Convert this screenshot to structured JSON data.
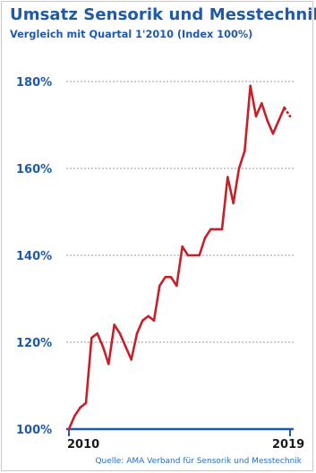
{
  "chart_data": {
    "type": "line",
    "title": "Umsatz Sensorik und Messtechnik",
    "subtitle": "Vergleich mit Quartal 1'2010 (Index 100%)",
    "xlabel": "",
    "ylabel": "",
    "x_start_label": "2010",
    "x_end_label": "2019",
    "yticks": [
      100,
      120,
      140,
      160,
      180
    ],
    "ytick_labels": [
      "100%",
      "120%",
      "140%",
      "160%",
      "180%"
    ],
    "ylim": [
      100,
      180
    ],
    "grid": "horizontal dotted",
    "line_color": "#c8202a",
    "axis_color": "#1f5aa8",
    "series": [
      {
        "values": [
          100,
          103,
          105,
          106,
          121,
          122,
          119,
          115,
          124,
          122,
          119,
          116,
          122,
          125,
          126,
          125,
          133,
          135,
          135,
          133,
          142,
          140,
          140,
          140,
          144,
          146,
          146,
          146,
          158,
          152,
          160,
          164,
          179,
          172,
          175,
          171,
          168,
          171,
          174,
          172
        ],
        "last_point_dashed": true
      }
    ],
    "source": "Quelle: AMA Verband für Sensorik und Messtechnik"
  }
}
